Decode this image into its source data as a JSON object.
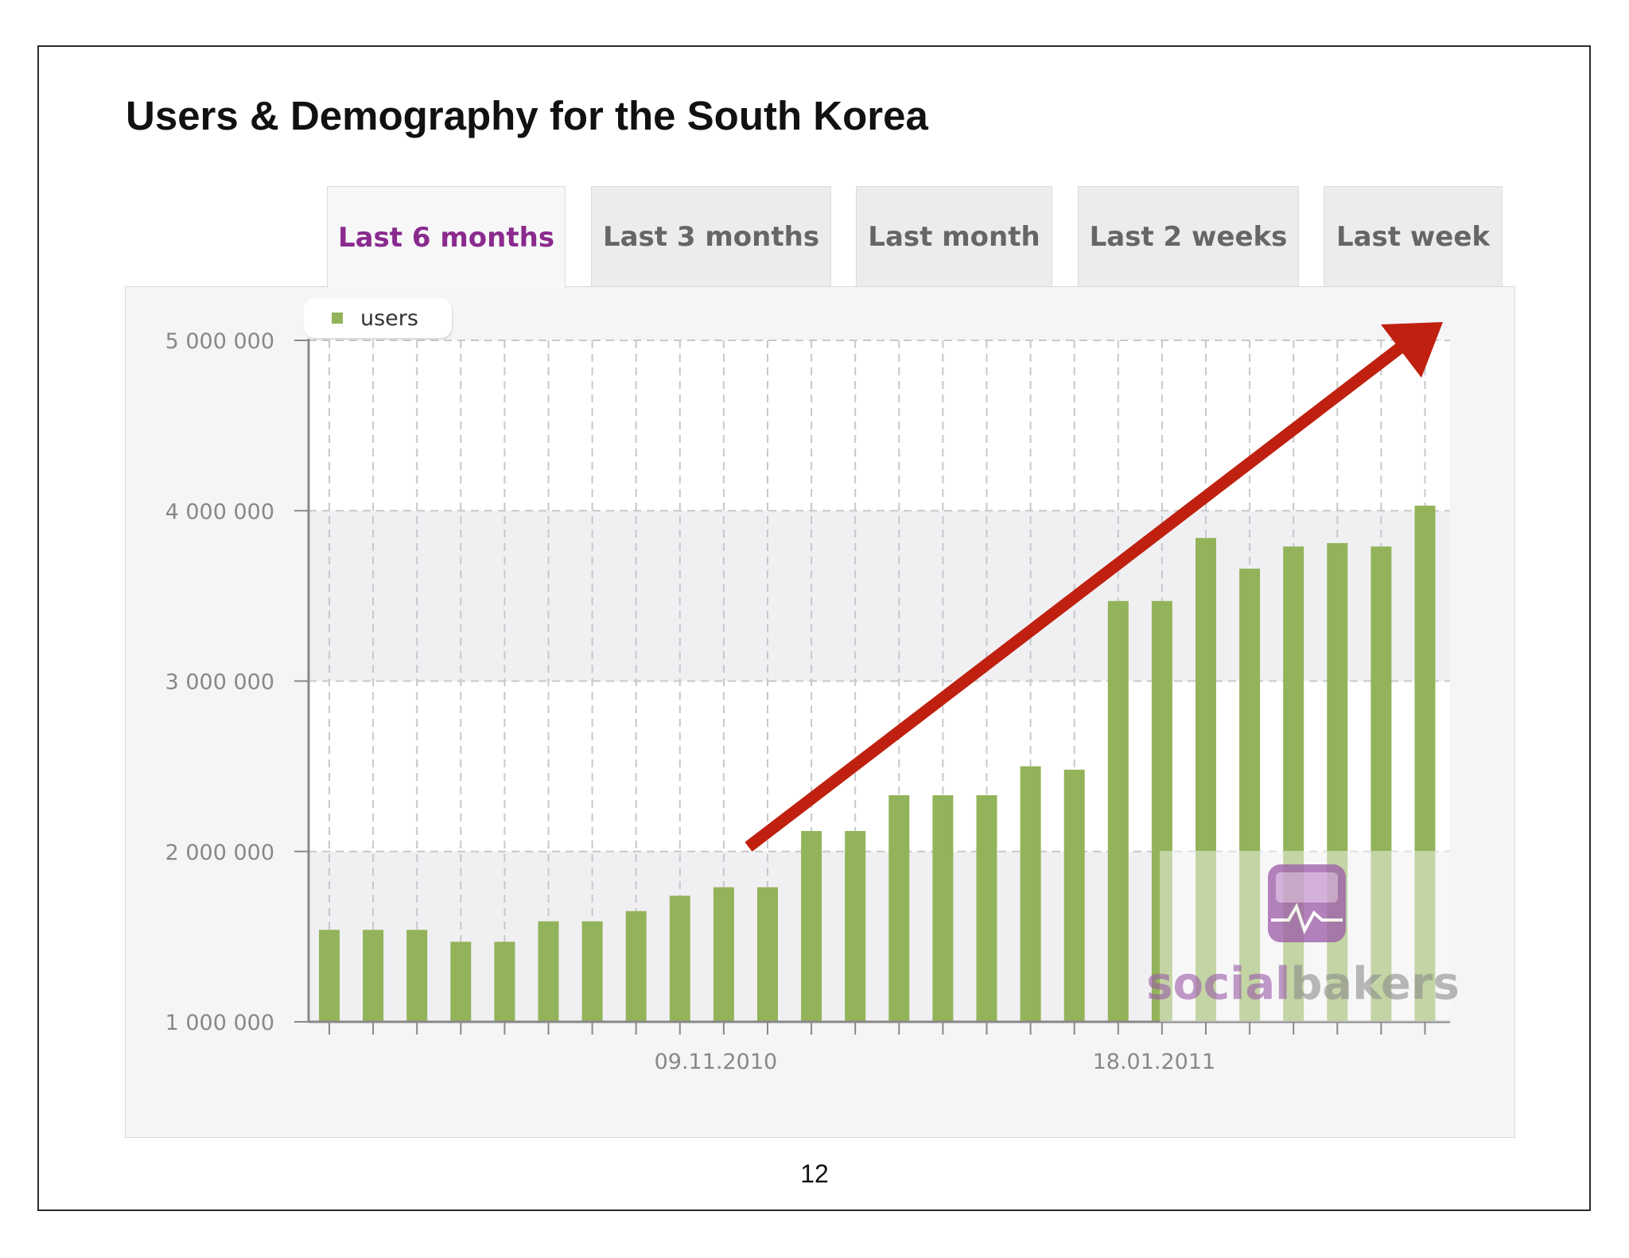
{
  "slide": {
    "title": "Users & Demography for the South Korea",
    "page_number": "12"
  },
  "tabs": [
    {
      "label": "Last 6 months",
      "active": true
    },
    {
      "label": "Last 3 months",
      "active": false
    },
    {
      "label": "Last month",
      "active": false
    },
    {
      "label": "Last 2 weeks",
      "active": false
    },
    {
      "label": "Last week",
      "active": false
    }
  ],
  "colors": {
    "bar": "#93b35a",
    "active_tab": "#8a2a8e",
    "arrow": "#c0200f",
    "watermark": "#9b5aa8"
  },
  "watermark": {
    "text_part1": "social",
    "text_part2": "bakers",
    "icon": "socialbakers-heartbeat-icon"
  },
  "arrow": {
    "description": "trend-arrow"
  },
  "chart_data": {
    "type": "bar",
    "ylim": [
      1000000,
      5000000
    ],
    "yticks": [
      1000000,
      2000000,
      3000000,
      4000000,
      5000000
    ],
    "ytick_labels": [
      "1 000 000",
      "2 000 000",
      "3 000 000",
      "4 000 000",
      "5 000 000"
    ],
    "xtick_labels": [
      {
        "index": 9,
        "label": "09.11.2010"
      },
      {
        "index": 19,
        "label": "18.01.2011"
      }
    ],
    "grid": true,
    "legend_position": "top-left",
    "series": [
      {
        "name": "users",
        "values": [
          1540000,
          1540000,
          1540000,
          1470000,
          1470000,
          1590000,
          1590000,
          1650000,
          1740000,
          1790000,
          1790000,
          2120000,
          2120000,
          2330000,
          2330000,
          2330000,
          2500000,
          2480000,
          3470000,
          3470000,
          3840000,
          3660000,
          3790000,
          3810000,
          3790000,
          4030000
        ]
      }
    ]
  }
}
